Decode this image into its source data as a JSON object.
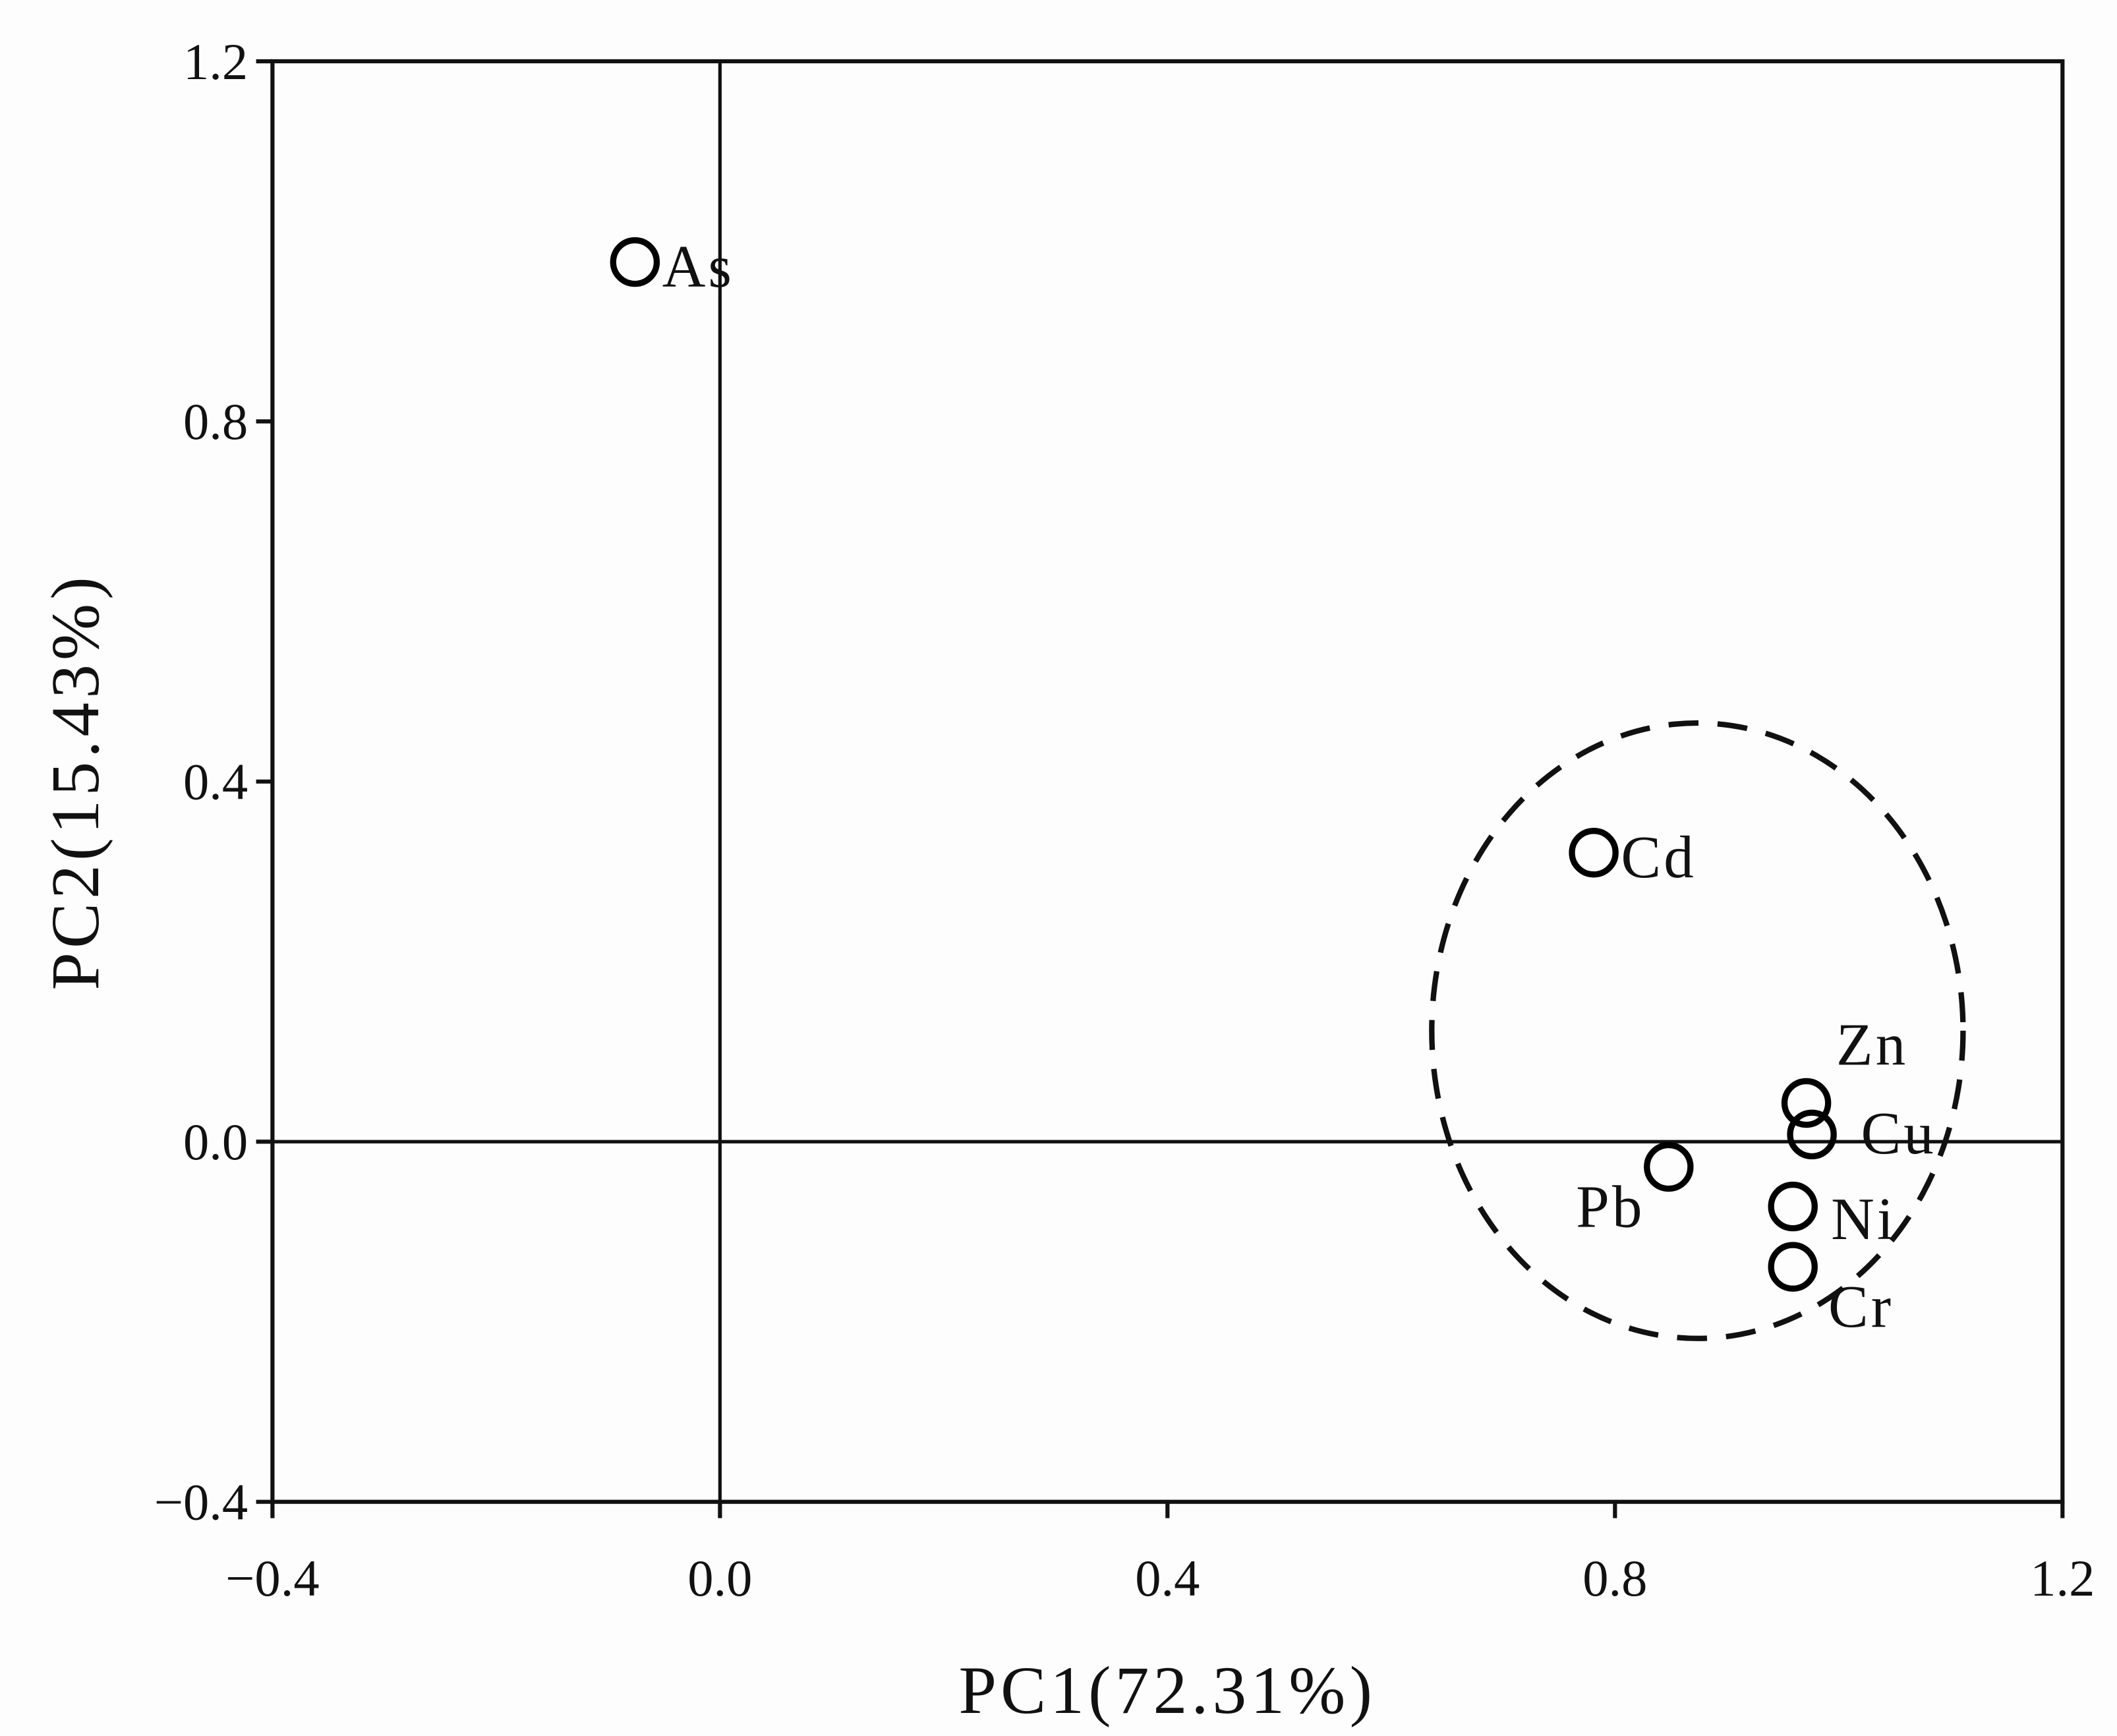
{
  "chart_data": {
    "type": "scatter",
    "x_label": "PC1(72.31%)",
    "y_label": "PC2(15.43%)",
    "labels": [
      "As",
      "Cd",
      "Zn",
      "Cu",
      "Pb",
      "Ni",
      "Cr"
    ],
    "x": [
      -0.076,
      0.781,
      0.971,
      0.976,
      0.848,
      0.959,
      0.959
    ],
    "y": [
      0.977,
      0.321,
      0.043,
      0.008,
      -0.028,
      -0.072,
      -0.139
    ],
    "color": "#000000",
    "xlim": [
      -0.4,
      1.2
    ],
    "ylim": [
      -0.4,
      1.2
    ],
    "xticks": [
      {
        "value": -0.4,
        "label": "−0.4"
      },
      {
        "value": 0,
        "label": "0.0"
      },
      0.4,
      0.8,
      1.2
    ],
    "yticks": [
      {
        "value": -0.4,
        "label": "−0.4"
      },
      {
        "value": 0,
        "label": "0.0"
      },
      0.4,
      0.8,
      1.2
    ]
  }
}
